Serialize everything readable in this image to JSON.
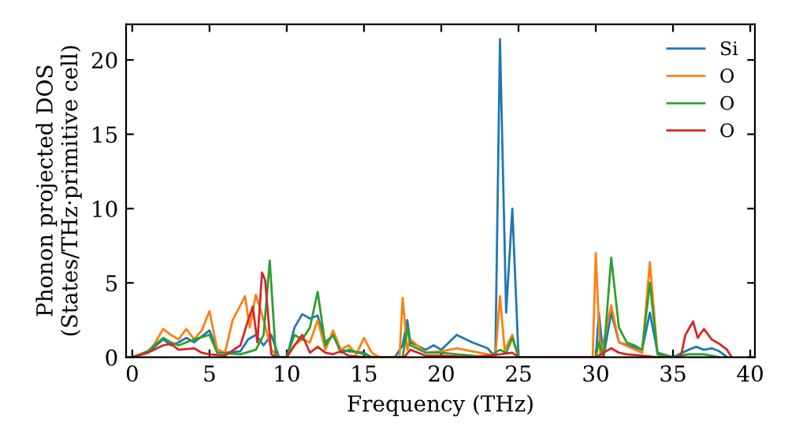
{
  "chart_data": {
    "type": "line",
    "xlabel": "Frequency (THz)",
    "ylabel": "Phonon projected DOS\n(States/THz·primitive cell)",
    "xlim": [
      -0.4,
      40.3
    ],
    "ylim": [
      0,
      22.4
    ],
    "xticks": [
      0,
      5,
      10,
      15,
      20,
      25,
      30,
      35,
      40
    ],
    "yticks": [
      0,
      5,
      10,
      15,
      20
    ],
    "legend": "top right",
    "grid": false,
    "series": [
      {
        "name": "Si",
        "color": "#1f77b4",
        "x": [
          0,
          1,
          2,
          2.5,
          3,
          3.5,
          4,
          4.5,
          5,
          5.5,
          6,
          7,
          7.5,
          8,
          8.5,
          9,
          9.5,
          10,
          10.5,
          11,
          11.5,
          12,
          12.5,
          13,
          13.5,
          14,
          15,
          15.5,
          17,
          17.5,
          17.8,
          18,
          19,
          19.5,
          20,
          20.5,
          21,
          22,
          23,
          23.5,
          23.8,
          24.2,
          24.6,
          25,
          30,
          30.2,
          30.5,
          31,
          31.5,
          33,
          33.5,
          34,
          35,
          36,
          36.5,
          37,
          37.5,
          38,
          38.5
        ],
        "values": [
          0,
          0.3,
          1.2,
          0.8,
          1.0,
          1.3,
          1.0,
          1.4,
          1.8,
          0.5,
          0.3,
          0.4,
          1.2,
          1.5,
          0.8,
          1.5,
          0,
          0,
          2,
          2.9,
          2.6,
          2.8,
          1.0,
          1.5,
          0.5,
          0.4,
          0.3,
          0,
          0,
          0.8,
          2.5,
          1.0,
          0.5,
          0.8,
          0.5,
          1.0,
          1.5,
          1.0,
          0.6,
          0,
          21.4,
          3.0,
          10.0,
          0,
          0,
          3.0,
          0,
          3.0,
          1.0,
          0.5,
          3.0,
          0.3,
          0,
          0.5,
          0.7,
          0.5,
          0.6,
          0.4,
          0
        ]
      },
      {
        "name": "O",
        "color": "#ff7f0e",
        "x": [
          0,
          1,
          1.5,
          2,
          2.5,
          3,
          3.5,
          4,
          4.5,
          5,
          5.5,
          6,
          6.5,
          7,
          7.3,
          7.6,
          8,
          8.5,
          9,
          9.5,
          10,
          10.5,
          11,
          11.5,
          12,
          12.5,
          13,
          13.5,
          14,
          14.5,
          15,
          15.5,
          16,
          17.3,
          17.5,
          17.8,
          18,
          19,
          20,
          21,
          22,
          23,
          23.5,
          23.8,
          24.1,
          24.6,
          25,
          29.8,
          30,
          30.3,
          31,
          31.5,
          33,
          33.5,
          34,
          35
        ],
        "values": [
          0,
          0.3,
          1.0,
          1.9,
          1.5,
          1.2,
          1.9,
          1.2,
          1.8,
          3.1,
          0.5,
          0.3,
          2.5,
          3.5,
          4.1,
          2.0,
          4.2,
          2.5,
          0.5,
          0,
          0,
          0.8,
          1.2,
          1.0,
          2.5,
          0.5,
          1.8,
          0.5,
          0.8,
          0.2,
          1.3,
          0.3,
          0,
          0,
          4.0,
          0.5,
          1.2,
          0.3,
          0.4,
          0.6,
          0.4,
          0.2,
          0,
          4.1,
          0.5,
          1.5,
          0,
          0,
          7.0,
          0,
          3.5,
          1.0,
          0.3,
          6.4,
          0.2,
          0
        ]
      },
      {
        "name": "O",
        "color": "#2ca02c",
        "x": [
          0,
          1,
          2,
          2.5,
          3,
          4,
          5,
          5.5,
          7,
          8,
          8.5,
          8.9,
          9.3,
          10,
          10.5,
          11,
          11.5,
          12,
          12.5,
          13,
          13.5,
          14,
          15,
          15.5,
          17.5,
          17.8,
          18,
          19,
          20,
          21,
          22,
          23,
          23.8,
          24.2,
          24.6,
          25,
          30,
          30.2,
          30.5,
          31,
          31.5,
          32,
          32.5,
          33,
          33.5,
          34,
          35,
          36,
          37,
          38
        ],
        "values": [
          0,
          0.4,
          1.3,
          1.0,
          0.8,
          1.2,
          1.5,
          0.3,
          0.2,
          0.5,
          1.5,
          6.5,
          0,
          0,
          1.5,
          1.2,
          2.0,
          4.4,
          0.8,
          1.5,
          0.3,
          0.5,
          0.2,
          0,
          0,
          2.0,
          0.8,
          0.3,
          0.3,
          0.2,
          0.1,
          0,
          0.5,
          0.3,
          1.3,
          0,
          0,
          1.0,
          0,
          6.7,
          2.0,
          1.0,
          0.8,
          0.5,
          5.0,
          0.2,
          0,
          0.2,
          0.2,
          0
        ]
      },
      {
        "name": "O",
        "color": "#d62728",
        "x": [
          0,
          1,
          2,
          2.5,
          3,
          4,
          4.5,
          5,
          6,
          7,
          7.5,
          7.8,
          8.1,
          8.4,
          8.6,
          9.0,
          9.3,
          10,
          10.5,
          11,
          11.5,
          12,
          12.5,
          13,
          13.5,
          14,
          15,
          17.6,
          18,
          19,
          20,
          22,
          23.8,
          24.6,
          25,
          30,
          31,
          31.5,
          32,
          33,
          34,
          35.5,
          35.8,
          36.3,
          36.6,
          37,
          37.5,
          38,
          38.5,
          38.8
        ],
        "values": [
          0,
          0.3,
          0.8,
          0.9,
          0.5,
          0.6,
          0.3,
          0.2,
          0.1,
          0.8,
          2.5,
          3.4,
          1.0,
          5.7,
          5.2,
          0.2,
          0,
          0,
          0.8,
          1.5,
          0.3,
          0.7,
          0.3,
          0.2,
          0.4,
          0.1,
          0,
          0,
          0.5,
          0.1,
          0.1,
          0,
          0.2,
          0.3,
          0,
          0,
          0.6,
          0.3,
          0.2,
          0.1,
          0,
          0,
          1.5,
          2.4,
          1.3,
          1.9,
          1.2,
          0.9,
          0.5,
          0
        ]
      }
    ]
  }
}
